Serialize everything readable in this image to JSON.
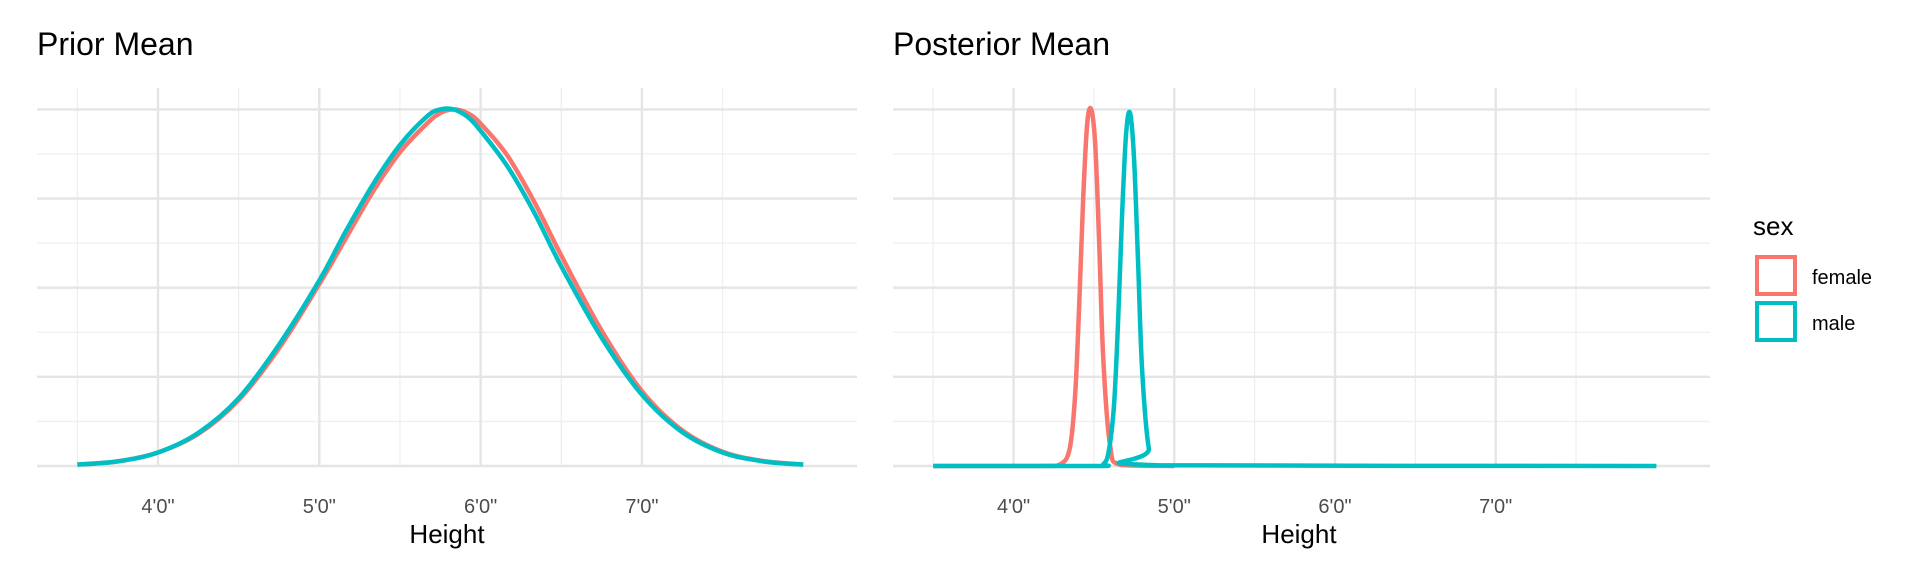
{
  "colors": {
    "female": "#F8766D",
    "male": "#00BFC4"
  },
  "legend": {
    "title": "sex",
    "items": [
      {
        "key": "female",
        "label": "female"
      },
      {
        "key": "male",
        "label": "male"
      }
    ]
  },
  "chart_data": [
    {
      "type": "line",
      "title": "Prior Mean",
      "xlabel": "Height",
      "ylabel": "",
      "x_unit": "inches",
      "xlim": [
        39,
        100
      ],
      "ylim": [
        0,
        1.06
      ],
      "x_major_ticks": [
        48,
        60,
        72,
        84
      ],
      "x_tick_labels": [
        "4'0\"",
        "5'0\"",
        "6'0\"",
        "7'0\""
      ],
      "x_minor_ticks": [
        42,
        54,
        66,
        78,
        90
      ],
      "y_major_ticks": [
        0,
        0.25,
        0.5,
        0.75,
        1.0
      ],
      "y_minor_ticks": [
        0.125,
        0.375,
        0.625,
        0.875
      ],
      "grid": true,
      "y_tick_labels_shown": false,
      "series": [
        {
          "name": "female",
          "color_key": "female",
          "x": [
            42,
            45,
            48,
            51,
            54,
            57,
            60,
            62,
            64,
            66,
            68,
            69,
            70,
            71,
            72,
            74,
            76,
            78,
            81,
            84,
            87,
            90,
            93,
            96
          ],
          "y": [
            0.004,
            0.013,
            0.038,
            0.09,
            0.185,
            0.33,
            0.51,
            0.64,
            0.77,
            0.88,
            0.96,
            0.99,
            1.0,
            0.99,
            0.96,
            0.87,
            0.74,
            0.59,
            0.38,
            0.21,
            0.1,
            0.04,
            0.014,
            0.004
          ]
        },
        {
          "name": "male",
          "color_key": "male",
          "x": [
            42,
            45,
            48,
            51,
            54,
            57,
            60,
            62,
            64,
            66,
            68,
            69,
            70,
            71,
            72,
            74,
            76,
            78,
            81,
            84,
            87,
            90,
            93,
            96
          ],
          "y": [
            0.004,
            0.013,
            0.038,
            0.093,
            0.19,
            0.34,
            0.52,
            0.66,
            0.79,
            0.9,
            0.98,
            1.0,
            1.0,
            0.98,
            0.94,
            0.84,
            0.71,
            0.56,
            0.36,
            0.2,
            0.095,
            0.038,
            0.013,
            0.004
          ]
        }
      ]
    },
    {
      "type": "line",
      "title": "Posterior Mean",
      "xlabel": "Height",
      "ylabel": "",
      "x_unit": "inches",
      "xlim": [
        39,
        100
      ],
      "ylim": [
        0,
        1.06
      ],
      "x_major_ticks": [
        48,
        60,
        72,
        84
      ],
      "x_tick_labels": [
        "4'0\"",
        "5'0\"",
        "6'0\"",
        "7'0\""
      ],
      "x_minor_ticks": [
        42,
        54,
        66,
        78,
        90
      ],
      "y_major_ticks": [
        0,
        0.25,
        0.5,
        0.75,
        1.0
      ],
      "y_minor_ticks": [
        0.125,
        0.375,
        0.625,
        0.875
      ],
      "grid": true,
      "y_tick_labels_shown": false,
      "series": [
        {
          "name": "female",
          "color_key": "female",
          "x": [
            42,
            50,
            51.5,
            52.2,
            52.6,
            52.9,
            53.2,
            53.5,
            53.8,
            54.1,
            54.4,
            54.7,
            55.2,
            56,
            60
          ],
          "y": [
            0,
            0,
            0.005,
            0.05,
            0.2,
            0.45,
            0.75,
            0.96,
            1.0,
            0.9,
            0.62,
            0.3,
            0.06,
            0.003,
            0
          ]
        },
        {
          "name": "male",
          "color_key": "male",
          "x": [
            42,
            54,
            54.7,
            55.1,
            55.5,
            55.8,
            56.1,
            56.4,
            56.7,
            57.0,
            57.3,
            57.6,
            58.1,
            58.8,
            96
          ],
          "y": [
            0,
            0,
            0.005,
            0.04,
            0.17,
            0.4,
            0.7,
            0.93,
            0.99,
            0.86,
            0.57,
            0.27,
            0.05,
            0.002,
            0
          ]
        }
      ]
    }
  ]
}
